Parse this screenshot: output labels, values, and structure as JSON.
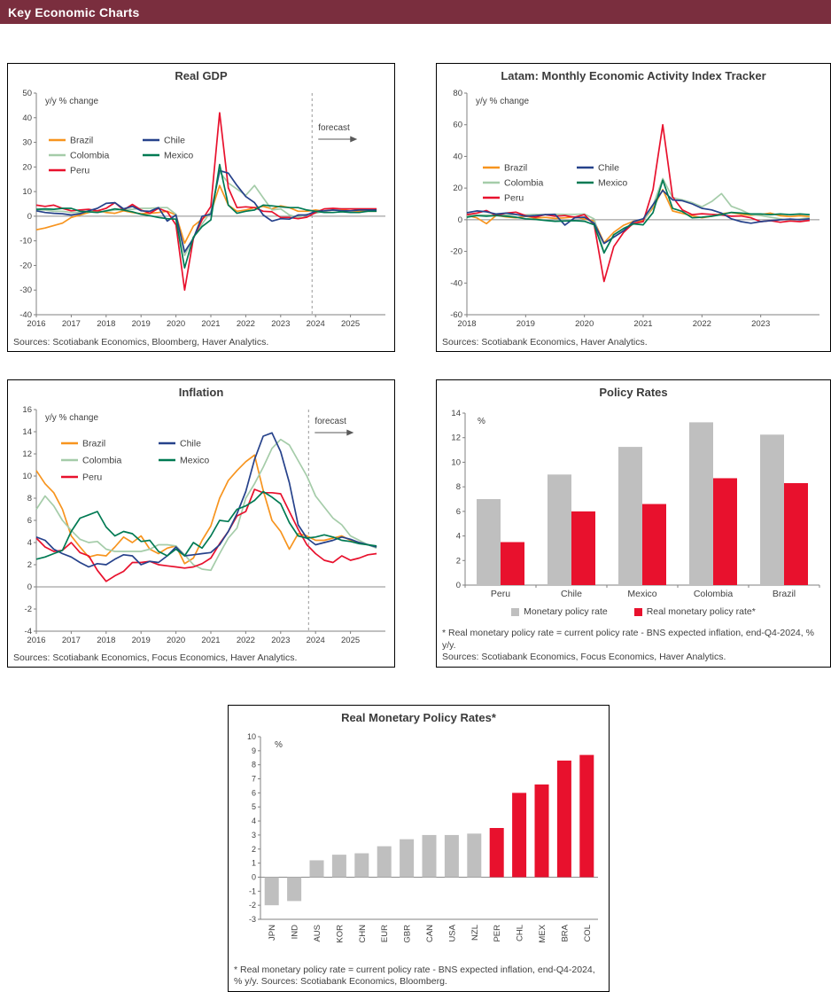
{
  "page": {
    "title": "Key Economic Charts",
    "header_bg": "#7A2E3E"
  },
  "colors": {
    "text": "#404040",
    "axis": "#808080",
    "bar_gray": "#BFBFBF",
    "bar_red": "#E8112D"
  },
  "chart_data": [
    {
      "id": "real-gdp",
      "type": "line",
      "title": "Real GDP",
      "unit_label": "y/y % change",
      "sources": "Sources: Scotiabank Economics, Bloomberg, Haver Analytics.",
      "xlim": [
        2016,
        2026
      ],
      "ylim": [
        -40,
        50
      ],
      "ytick_step": 10,
      "xticks": [
        2016,
        2017,
        2018,
        2019,
        2020,
        2021,
        2022,
        2023,
        2024,
        2025
      ],
      "x_start": 2016,
      "x_step": 0.25,
      "forecast_x": 2023.9,
      "forecast_label": "forecast",
      "series": [
        {
          "name": "Brazil",
          "color": "#F7941E",
          "values": [
            -5.5,
            -4.8,
            -3.8,
            -2.8,
            -0.5,
            0.5,
            1.5,
            2.2,
            1.5,
            1.2,
            2.2,
            1.5,
            1,
            1.2,
            1.5,
            2,
            0.5,
            -11,
            -4,
            -1.2,
            1.5,
            12.5,
            4.5,
            2,
            2.5,
            3.5,
            4,
            3,
            4.2,
            3.5,
            2,
            2,
            2.5,
            2,
            2.5,
            2.5,
            2.2,
            2,
            2,
            2
          ]
        },
        {
          "name": "Colombia",
          "color": "#A5CCA9",
          "values": [
            2.5,
            2.5,
            2,
            2,
            1.5,
            1.5,
            1.8,
            1.5,
            2,
            2.5,
            2.8,
            2.8,
            3.2,
            3.2,
            3.5,
            3.5,
            0.8,
            -16,
            -8.5,
            -3.2,
            1.8,
            18,
            13.5,
            11,
            8.5,
            12.5,
            7.5,
            2.5,
            3,
            0.5,
            -0.5,
            0.8,
            1.2,
            2,
            2.5,
            3,
            3,
            3,
            3,
            3
          ]
        },
        {
          "name": "Peru",
          "color": "#E8112D",
          "values": [
            4.5,
            4,
            4.5,
            3.2,
            2.2,
            2.5,
            2.8,
            2.2,
            3.2,
            5.5,
            2.5,
            4.8,
            2.5,
            1.2,
            3.2,
            1.8,
            -3.5,
            -30,
            -9,
            -1.5,
            4,
            42,
            11.5,
            3.5,
            3.8,
            3.5,
            2,
            1.8,
            -0.5,
            -0.5,
            -1,
            -0.4,
            1.5,
            3,
            3.2,
            3,
            3,
            3,
            3,
            3
          ]
        },
        {
          "name": "Chile",
          "color": "#26428B",
          "values": [
            2.2,
            1.5,
            1.2,
            1,
            0.5,
            1,
            2.2,
            3.2,
            5.2,
            5.5,
            3,
            4,
            2.2,
            2,
            3.5,
            -2,
            0.5,
            -14.5,
            -9,
            0,
            0.8,
            18.5,
            17.5,
            12.5,
            8,
            5.5,
            0.5,
            -2,
            -1,
            -1.2,
            0.5,
            0.5,
            2,
            2.2,
            2.5,
            2.2,
            2.2,
            2.5,
            2.5,
            2.5
          ]
        },
        {
          "name": "Mexico",
          "color": "#007A53",
          "values": [
            2.8,
            3,
            2.8,
            3.2,
            3.2,
            2,
            1.8,
            1.5,
            2.2,
            3,
            2.5,
            1.8,
            0.8,
            0.2,
            -0.5,
            -1,
            -1.2,
            -21,
            -8.5,
            -4.2,
            -1.5,
            21,
            4.5,
            1.2,
            2,
            2.5,
            4.5,
            4.2,
            3.8,
            3.5,
            3.5,
            2.5,
            2,
            1.5,
            1.5,
            1.8,
            1.5,
            1.5,
            2,
            2
          ]
        }
      ]
    },
    {
      "id": "latam-activity-tracker",
      "type": "line",
      "title": "Latam: Monthly Economic Activity Index Tracker",
      "unit_label": "y/y % change",
      "sources": "Sources: Scotiabank Economics, Haver Analytics.",
      "xlim": [
        2018,
        2024
      ],
      "ylim": [
        -60,
        80
      ],
      "ytick_step": 20,
      "xticks": [
        2018,
        2019,
        2020,
        2021,
        2022,
        2023
      ],
      "x_start": 2018,
      "x_step": 0.166667,
      "series": [
        {
          "name": "Brazil",
          "color": "#F7941E",
          "values": [
            2.8,
            1.2,
            -2.5,
            2.8,
            1.8,
            1.2,
            2.2,
            1,
            1.5,
            0.8,
            1.2,
            1.8,
            0.5,
            -0.8,
            -14.5,
            -8,
            -3.5,
            -1,
            -0.5,
            7.5,
            19,
            5.5,
            4,
            2.5,
            1.2,
            2.2,
            3.8,
            4.5,
            3.5,
            2.8,
            3.2,
            4.2,
            2.5,
            2,
            2.5,
            2
          ]
        },
        {
          "name": "Colombia",
          "color": "#A5CCA9",
          "values": [
            2.6,
            2.8,
            3,
            2.6,
            2.9,
            3.1,
            3.1,
            3.4,
            3.2,
            3.5,
            3.4,
            3.4,
            3.6,
            0.5,
            -20.5,
            -9.5,
            -6,
            -2.8,
            -1.2,
            9,
            26,
            14,
            12.5,
            10.8,
            8.2,
            11.5,
            16.5,
            8.5,
            6.2,
            3.2,
            2.6,
            1.6,
            0.6,
            -0.6,
            0.5,
            1.2
          ]
        },
        {
          "name": "Peru",
          "color": "#E8112D",
          "values": [
            3.2,
            4.2,
            5.8,
            2.6,
            4.2,
            4.8,
            2.6,
            1.6,
            3.2,
            2.2,
            2.6,
            1.6,
            3.2,
            -3.2,
            -39,
            -17,
            -8,
            -2.2,
            -1.2,
            19,
            60,
            14.5,
            6.2,
            3.2,
            3.8,
            3.4,
            3,
            2.2,
            2.4,
            1.2,
            -1.2,
            -0.6,
            -1.6,
            -0.8,
            -1.2,
            -0.4
          ]
        },
        {
          "name": "Chile",
          "color": "#26428B",
          "values": [
            4.4,
            5.6,
            5,
            3.6,
            4.2,
            3.4,
            2.2,
            2.6,
            3.2,
            3.4,
            -3.4,
            1.2,
            1.6,
            -2.2,
            -15,
            -11,
            -7,
            -1.2,
            0.6,
            9.5,
            18.5,
            12.5,
            12,
            10,
            7.2,
            6.2,
            4.2,
            0.6,
            -1.2,
            -2.2,
            -1.2,
            -0.6,
            0,
            0.4,
            0,
            0.6
          ]
        },
        {
          "name": "Mexico",
          "color": "#007A53",
          "values": [
            1.6,
            2.6,
            2.2,
            2.6,
            2.2,
            1.6,
            0.6,
            0.2,
            -0.4,
            -1,
            -0.8,
            -0.6,
            -1,
            -3.2,
            -21,
            -9.5,
            -5.5,
            -2.6,
            -3.2,
            4.5,
            25,
            7.2,
            5.2,
            1.2,
            1.6,
            2.2,
            3.2,
            4.6,
            4.2,
            3.6,
            3.6,
            3.2,
            3.6,
            3.2,
            3.6,
            3.2
          ]
        }
      ]
    },
    {
      "id": "inflation",
      "type": "line",
      "title": "Inflation",
      "unit_label": "y/y % change",
      "sources": "Sources: Scotiabank Economics, Focus Economics, Haver Analytics.",
      "xlim": [
        2016,
        2026
      ],
      "ylim": [
        -4,
        16
      ],
      "ytick_step": 2,
      "xticks": [
        2016,
        2017,
        2018,
        2019,
        2020,
        2021,
        2022,
        2023,
        2024,
        2025
      ],
      "x_start": 2016,
      "x_step": 0.25,
      "forecast_x": 2023.8,
      "forecast_label": "forecast",
      "series": [
        {
          "name": "Brazil",
          "color": "#F7941E",
          "values": [
            10.5,
            9.3,
            8.5,
            7,
            4.6,
            3.6,
            2.7,
            2.9,
            2.8,
            3.6,
            4.5,
            4,
            4.6,
            3.4,
            3,
            3.5,
            3.7,
            2.1,
            2.6,
            4.2,
            5.5,
            8,
            9.6,
            10.5,
            11.3,
            11.9,
            8.7,
            6,
            5,
            3.4,
            4.8,
            4.6,
            4.2,
            4.2,
            4.4,
            4.6,
            4.2,
            4,
            3.8,
            3.6
          ]
        },
        {
          "name": "Colombia",
          "color": "#A5CCA9",
          "values": [
            7,
            8.2,
            7.3,
            6,
            5.1,
            4.3,
            4,
            4.1,
            3.4,
            3.2,
            3.2,
            3.2,
            3.2,
            3.4,
            3.8,
            3.8,
            3.7,
            2.9,
            2,
            1.6,
            1.5,
            3,
            4.4,
            5.3,
            8,
            9.3,
            10.8,
            12.5,
            13.3,
            12.8,
            11.4,
            10,
            8.2,
            7.2,
            6.2,
            5.6,
            4.6,
            4.2,
            3.8,
            3.5
          ]
        },
        {
          "name": "Peru",
          "color": "#E8112D",
          "values": [
            4.4,
            3.6,
            3.2,
            3.3,
            4,
            3.1,
            2.8,
            1.5,
            0.5,
            1,
            1.4,
            2.2,
            2.2,
            2.3,
            2,
            1.9,
            1.8,
            1.7,
            1.8,
            2.1,
            2.6,
            3.9,
            5,
            6.4,
            6.8,
            8.8,
            8.5,
            8.5,
            8.4,
            6.8,
            5.2,
            3.8,
            3,
            2.4,
            2.2,
            2.8,
            2.4,
            2.6,
            2.9,
            3
          ]
        },
        {
          "name": "Chile",
          "color": "#26428B",
          "values": [
            4.5,
            4.2,
            3.4,
            3,
            2.7,
            2.2,
            1.8,
            2.1,
            2,
            2.5,
            2.9,
            2.8,
            2,
            2.3,
            2.2,
            2.8,
            3.6,
            2.8,
            2.9,
            3,
            3.1,
            3.8,
            5,
            6.6,
            8.6,
            11.5,
            13.6,
            13.9,
            12.2,
            9.4,
            5.6,
            4.4,
            3.8,
            4,
            4.2,
            4.5,
            4.3,
            4,
            3.8,
            3.6
          ]
        },
        {
          "name": "Mexico",
          "color": "#007A53",
          "values": [
            2.5,
            2.7,
            3,
            3.3,
            5,
            6.2,
            6.5,
            6.8,
            5.4,
            4.6,
            5,
            4.8,
            4.1,
            4.2,
            3.2,
            2.8,
            3.4,
            2.8,
            4,
            3.5,
            4.6,
            6,
            5.9,
            7,
            7.3,
            7.8,
            8.6,
            8.1,
            7.5,
            5.8,
            4.6,
            4.4,
            4.5,
            4.7,
            4.5,
            4.2,
            4.1,
            3.9,
            3.8,
            3.7
          ]
        }
      ]
    },
    {
      "id": "policy-rates",
      "type": "grouped_bar",
      "title": "Policy Rates",
      "unit_label": "%",
      "ylim": [
        0,
        14
      ],
      "ytick_step": 2,
      "categories": [
        "Peru",
        "Chile",
        "Mexico",
        "Colombia",
        "Brazil"
      ],
      "series": [
        {
          "name": "Monetary policy rate",
          "color": "#BFBFBF",
          "values": [
            7.0,
            9.0,
            11.25,
            13.25,
            12.25
          ]
        },
        {
          "name": "Real monetary policy rate*",
          "color": "#E8112D",
          "values": [
            3.5,
            6.0,
            6.6,
            8.7,
            8.3
          ]
        }
      ],
      "footnote": "* Real monetary policy rate = current policy rate - BNS expected inflation, end-Q4-2024, % y/y.",
      "sources": "Sources: Scotiabank Economics, Focus Economics, Haver Analytics."
    },
    {
      "id": "real-monetary-policy-rates",
      "type": "bar",
      "title": "Real Monetary Policy Rates*",
      "unit_label": "%",
      "ylim": [
        -3,
        10
      ],
      "ytick_step": 1,
      "categories": [
        "JPN",
        "IND",
        "AUS",
        "KOR",
        "CHN",
        "EUR",
        "GBR",
        "CAN",
        "USA",
        "NZL",
        "PER",
        "CHL",
        "MEX",
        "BRA",
        "COL"
      ],
      "values": [
        -2.0,
        -1.7,
        1.2,
        1.6,
        1.7,
        2.2,
        2.7,
        3.0,
        3.0,
        3.1,
        3.5,
        6.0,
        6.6,
        8.3,
        8.7
      ],
      "bar_colors": [
        "#BFBFBF",
        "#BFBFBF",
        "#BFBFBF",
        "#BFBFBF",
        "#BFBFBF",
        "#BFBFBF",
        "#BFBFBF",
        "#BFBFBF",
        "#BFBFBF",
        "#BFBFBF",
        "#E8112D",
        "#E8112D",
        "#E8112D",
        "#E8112D",
        "#E8112D"
      ],
      "footnote": "* Real monetary policy rate = current policy rate - BNS expected inflation, end-Q4-2024, % y/y. Sources: Scotiabank Economics, Bloomberg."
    }
  ]
}
